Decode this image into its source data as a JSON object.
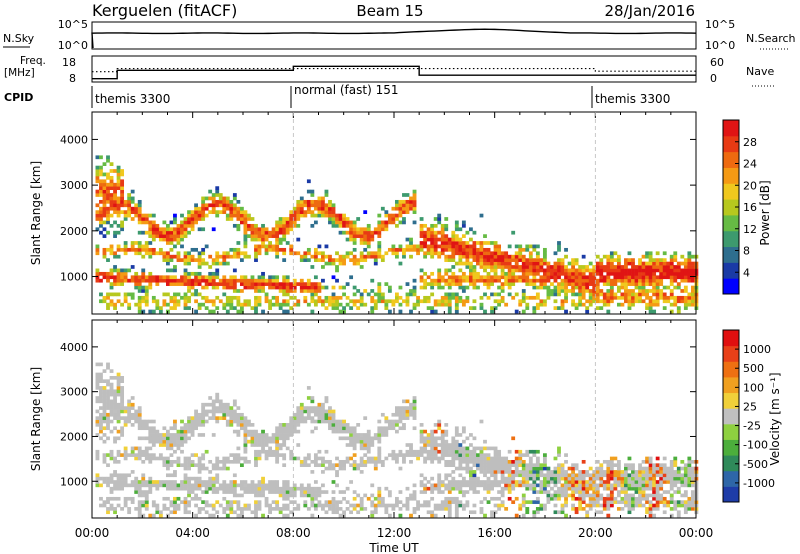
{
  "header": {
    "station": "Kerguelen (fitACF)",
    "beam": "Beam 15",
    "date": "28/Jan/2016"
  },
  "panels": {
    "nsky": {
      "left_label": "N.Sky",
      "right_label": "N.Search",
      "tick_top": "10^5",
      "tick_bottom": "10^0"
    },
    "freq": {
      "left_label_1": "Freq.",
      "left_label_2": "[MHz]",
      "left_ticks": [
        "18",
        "8"
      ],
      "right_ticks": [
        "60",
        "0"
      ],
      "right_label": "Nave"
    },
    "cpid": {
      "label": "CPID",
      "segments": [
        {
          "text": "themis 3300",
          "start_hour": 0
        },
        {
          "text": "normal (fast) 151",
          "start_hour": 8
        },
        {
          "text": "themis 3300",
          "start_hour": 20
        }
      ]
    }
  },
  "chart_data": [
    {
      "type": "heatmap",
      "name": "power",
      "ylabel": "Slant Range [km]",
      "ylim": [
        180,
        4600
      ],
      "yticks": [
        "1000",
        "2000",
        "3000",
        "4000"
      ],
      "xlim": [
        0,
        24
      ],
      "colorbar": {
        "label": "Power [dB]",
        "ticks": [
          "4",
          "8",
          "12",
          "16",
          "20",
          "24",
          "28"
        ],
        "colors": [
          "#0000ff",
          "#1a3aa6",
          "#2e6e8e",
          "#3d9a6e",
          "#66bb44",
          "#b7c81e",
          "#f0c81e",
          "#f59a14",
          "#ee6a10",
          "#e83a14",
          "#e01414"
        ]
      }
    },
    {
      "type": "heatmap",
      "name": "velocity",
      "ylabel": "Slant Range [km]",
      "ylim": [
        180,
        4600
      ],
      "yticks": [
        "1000",
        "2000",
        "3000",
        "4000"
      ],
      "xlim": [
        0,
        24
      ],
      "ground_scatter_color": "#bebebe",
      "colorbar": {
        "label": "Velocity [m s⁻¹]",
        "ticks": [
          "1000",
          "500",
          "100",
          "25",
          "-25",
          "-100",
          "-500",
          "-1000"
        ],
        "colors": [
          "#1e3ca8",
          "#2e66a8",
          "#2f8a5a",
          "#4cae3c",
          "#8ed040",
          "#c0c0c0",
          "#f0d03a",
          "#f0a020",
          "#ee7012",
          "#e84018",
          "#e00f0f"
        ]
      }
    }
  ],
  "x_axis": {
    "ticks": [
      "00:00",
      "04:00",
      "08:00",
      "12:00",
      "16:00",
      "20:00",
      "00:00"
    ],
    "label": "Time UT"
  }
}
